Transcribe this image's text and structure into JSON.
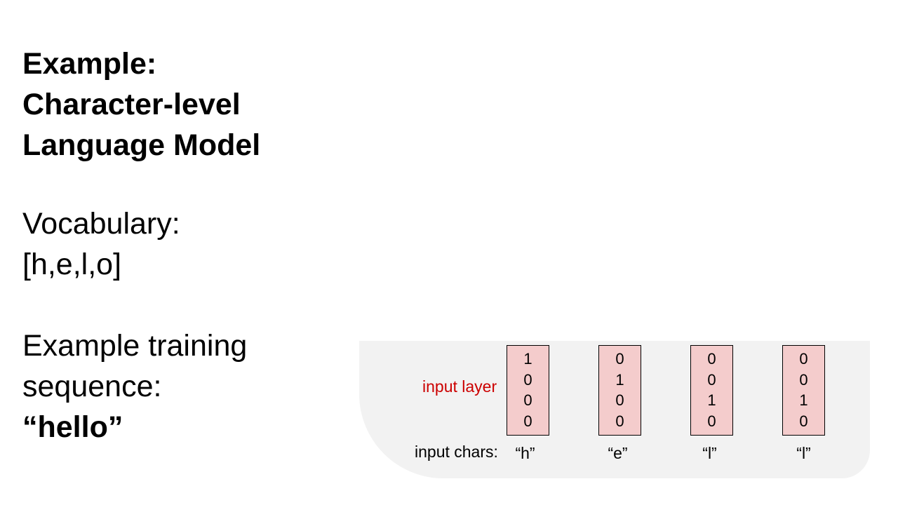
{
  "title": {
    "line1": "Example:",
    "line2": "Character-level",
    "line3": "Language Model"
  },
  "vocabulary": {
    "label": "Vocabulary:",
    "value": "[h,e,l,o]"
  },
  "training": {
    "label_line1": "Example training",
    "label_line2": "sequence:",
    "value": "“hello”"
  },
  "diagram": {
    "layer_label": "input layer",
    "layer_label_color": "#cc0000",
    "vector_fill": "#f4cccc",
    "background": "#f2f2f2",
    "chars_label": "input chars:",
    "columns": [
      {
        "char": "“h”",
        "bits": [
          "1",
          "0",
          "0",
          "0"
        ]
      },
      {
        "char": "“e”",
        "bits": [
          "0",
          "1",
          "0",
          "0"
        ]
      },
      {
        "char": "“l”",
        "bits": [
          "0",
          "0",
          "1",
          "0"
        ]
      },
      {
        "char": "“l”",
        "bits": [
          "0",
          "0",
          "1",
          "0"
        ]
      }
    ]
  }
}
